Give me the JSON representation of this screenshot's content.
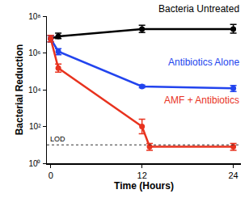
{
  "chart_data": {
    "type": "line",
    "x_label": "Time (Hours)",
    "y_label": "Bacterial Reduction",
    "log": "y",
    "grid": false,
    "marker": "circle",
    "line_style": "solid",
    "xlim": [
      -0.5,
      25
    ],
    "xticks": [
      0,
      12,
      24
    ],
    "ylim": [
      1,
      100000000
    ],
    "yticks": [
      {
        "value": 1,
        "label": "10⁰"
      },
      {
        "value": 100,
        "label": "10²"
      },
      {
        "value": 10000,
        "label": "10⁴"
      },
      {
        "value": 1000000,
        "label": "10⁶"
      },
      {
        "value": 100000000,
        "label": "10⁸"
      }
    ],
    "lod": {
      "label": "LOD",
      "value": 10
    },
    "series": [
      {
        "name": "Bacteria Untreated",
        "color": "#000000",
        "x": [
          0,
          1,
          12,
          24
        ],
        "values": [
          6000000,
          8000000,
          20000000,
          20000000
        ],
        "error_plus": [
          3000000,
          4000000,
          12000000,
          15000000
        ],
        "error_minus": [
          2000000,
          2000000,
          7000000,
          8000000
        ]
      },
      {
        "name": "Antibiotics Alone",
        "color": "#2244ee",
        "x": [
          0,
          1,
          12,
          24
        ],
        "values": [
          6000000,
          1200000,
          15000,
          12000
        ],
        "error_plus": [
          3000000,
          500000,
          3000,
          5000
        ],
        "error_minus": [
          2000000,
          400000,
          2000,
          4000
        ]
      },
      {
        "name": "AMF + Antibiotics",
        "color": "#e8321e",
        "x": [
          0,
          1,
          12,
          13,
          24
        ],
        "values": [
          6000000,
          150000,
          100,
          8,
          8
        ],
        "error_plus": [
          3000000,
          100000,
          150,
          4,
          4
        ],
        "error_minus": [
          2000000,
          60000,
          60,
          3,
          3
        ]
      }
    ]
  }
}
